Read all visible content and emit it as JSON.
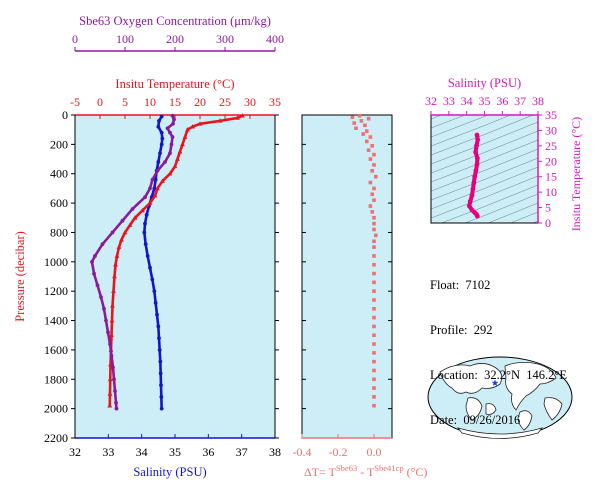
{
  "colors": {
    "plot_bg": "#cdeef7",
    "oxygen": "#8b1a9b",
    "temperature": "#e8141e",
    "salinity": "#1414c8",
    "delta": "#f07070",
    "ts_axis": "#d51ab8",
    "ts_curve": "#e6007e",
    "grid": "#000000"
  },
  "info": {
    "float_label": "Float:",
    "float_value": "7102",
    "profile_label": "Profile:",
    "profile_value": "292",
    "location_label": "Location:",
    "location_value": "32.2°N  146.2°E",
    "date_label": "Date:",
    "date_value": "09/26/2016"
  },
  "map": {
    "marker": "star",
    "marker_color": "#1a3cff",
    "description_free": true
  },
  "chart_data": [
    {
      "type": "line",
      "panel": "main-profiles",
      "ylabel": "Pressure (decibar)",
      "ylim": [
        0,
        2200
      ],
      "y_ticks": [
        0,
        200,
        400,
        600,
        800,
        1000,
        1200,
        1400,
        1600,
        1800,
        2000,
        2200
      ],
      "y_inverted": true,
      "axes": {
        "oxygen": {
          "label": "Sbe63 Oxygen Concentration (μm/kg)",
          "range": [
            0,
            400
          ],
          "ticks": [
            0,
            100,
            200,
            300,
            400
          ]
        },
        "temperature": {
          "label": "Insitu Temperature (°C)",
          "range": [
            -5,
            35
          ],
          "ticks": [
            -5,
            0,
            5,
            10,
            15,
            20,
            25,
            30,
            35
          ]
        },
        "salinity": {
          "label": "Salinity (PSU)",
          "range": [
            32,
            38
          ],
          "ticks": [
            32,
            33,
            34,
            35,
            36,
            37,
            38
          ]
        }
      },
      "series": [
        {
          "axis": "salinity",
          "color_key": "salinity",
          "points": [
            [
              34.6,
              10
            ],
            [
              34.52,
              40
            ],
            [
              34.5,
              80
            ],
            [
              34.6,
              120
            ],
            [
              34.62,
              160
            ],
            [
              34.6,
              200
            ],
            [
              34.55,
              260
            ],
            [
              34.5,
              320
            ],
            [
              34.45,
              380
            ],
            [
              34.42,
              440
            ],
            [
              34.38,
              500
            ],
            [
              34.3,
              560
            ],
            [
              34.22,
              620
            ],
            [
              34.15,
              680
            ],
            [
              34.1,
              740
            ],
            [
              34.08,
              800
            ],
            [
              34.12,
              880
            ],
            [
              34.18,
              960
            ],
            [
              34.25,
              1040
            ],
            [
              34.32,
              1120
            ],
            [
              34.38,
              1200
            ],
            [
              34.42,
              1280
            ],
            [
              34.46,
              1360
            ],
            [
              34.5,
              1440
            ],
            [
              34.52,
              1520
            ],
            [
              34.54,
              1600
            ],
            [
              34.56,
              1680
            ],
            [
              34.57,
              1760
            ],
            [
              34.58,
              1840
            ],
            [
              34.59,
              1920
            ],
            [
              34.6,
              2000
            ]
          ]
        },
        {
          "axis": "temperature",
          "color_key": "temperature",
          "points": [
            [
              28.5,
              5
            ],
            [
              27.5,
              20
            ],
            [
              24,
              40
            ],
            [
              20,
              60
            ],
            [
              18.5,
              80
            ],
            [
              17.5,
              100
            ],
            [
              17,
              150
            ],
            [
              16.5,
              200
            ],
            [
              16,
              250
            ],
            [
              15.5,
              300
            ],
            [
              15,
              350
            ],
            [
              14,
              400
            ],
            [
              12.5,
              450
            ],
            [
              11.5,
              500
            ],
            [
              11,
              550
            ],
            [
              10,
              600
            ],
            [
              8.5,
              650
            ],
            [
              7,
              700
            ],
            [
              6,
              750
            ],
            [
              5,
              800
            ],
            [
              4.3,
              850
            ],
            [
              3.8,
              900
            ],
            [
              3.4,
              960
            ],
            [
              3.1,
              1020
            ],
            [
              2.9,
              1100
            ],
            [
              2.7,
              1200
            ],
            [
              2.5,
              1300
            ],
            [
              2.4,
              1400
            ],
            [
              2.3,
              1500
            ],
            [
              2.2,
              1600
            ],
            [
              2.1,
              1700
            ],
            [
              2.05,
              1800
            ],
            [
              2.0,
              1900
            ],
            [
              1.95,
              1980
            ]
          ]
        },
        {
          "axis": "oxygen",
          "color_key": "oxygen",
          "points": [
            [
              195,
              5
            ],
            [
              198,
              30
            ],
            [
              196,
              60
            ],
            [
              185,
              90
            ],
            [
              190,
              120
            ],
            [
              195,
              150
            ],
            [
              193,
              200
            ],
            [
              190,
              260
            ],
            [
              180,
              320
            ],
            [
              165,
              380
            ],
            [
              155,
              440
            ],
            [
              150,
              500
            ],
            [
              140,
              560
            ],
            [
              115,
              640
            ],
            [
              95,
              720
            ],
            [
              75,
              800
            ],
            [
              55,
              880
            ],
            [
              40,
              960
            ],
            [
              34,
              1000
            ],
            [
              38,
              1080
            ],
            [
              45,
              1160
            ],
            [
              52,
              1240
            ],
            [
              58,
              1320
            ],
            [
              62,
              1400
            ],
            [
              66,
              1480
            ],
            [
              70,
              1560
            ],
            [
              73,
              1640
            ],
            [
              76,
              1720
            ],
            [
              78,
              1800
            ],
            [
              80,
              1880
            ],
            [
              82,
              1960
            ],
            [
              83,
              2000
            ]
          ]
        }
      ]
    },
    {
      "type": "scatter",
      "panel": "delta-temperature",
      "xlabel": "ΔT= T^Sbe63 - T^Sbe41cp (°C)",
      "xlabel_parts": {
        "lead": "ΔT= T",
        "sup1": "Sbe63",
        "mid": " - T",
        "sup2": "Sbe41cp",
        "tail": " (°C)"
      },
      "xlim": [
        -0.4,
        0.1
      ],
      "x_ticks": [
        -0.4,
        -0.2,
        0.0
      ],
      "ylim": [
        0,
        2200
      ],
      "y_inverted": true,
      "points": [
        [
          -0.08,
          5
        ],
        [
          -0.12,
          15
        ],
        [
          -0.03,
          25
        ],
        [
          -0.07,
          40
        ],
        [
          -0.11,
          55
        ],
        [
          -0.05,
          70
        ],
        [
          -0.1,
          90
        ],
        [
          -0.04,
          110
        ],
        [
          -0.06,
          130
        ],
        [
          -0.02,
          150
        ],
        [
          -0.04,
          180
        ],
        [
          -0.01,
          210
        ],
        [
          -0.03,
          240
        ],
        [
          0.0,
          270
        ],
        [
          -0.02,
          300
        ],
        [
          0.0,
          340
        ],
        [
          -0.01,
          380
        ],
        [
          0.01,
          420
        ],
        [
          -0.02,
          460
        ],
        [
          0.0,
          500
        ],
        [
          -0.01,
          540
        ],
        [
          0.0,
          580
        ],
        [
          -0.02,
          620
        ],
        [
          -0.01,
          660
        ],
        [
          0.0,
          700
        ],
        [
          0.0,
          740
        ],
        [
          0.0,
          780
        ],
        [
          0.01,
          820
        ],
        [
          0.0,
          860
        ],
        [
          0.0,
          900
        ],
        [
          0.0,
          960
        ],
        [
          0.0,
          1020
        ],
        [
          0.0,
          1080
        ],
        [
          0.0,
          1140
        ],
        [
          0.0,
          1200
        ],
        [
          0.0,
          1260
        ],
        [
          0.0,
          1320
        ],
        [
          0.0,
          1380
        ],
        [
          0.0,
          1440
        ],
        [
          0.0,
          1500
        ],
        [
          0.0,
          1560
        ],
        [
          0.0,
          1620
        ],
        [
          0.0,
          1680
        ],
        [
          0.0,
          1740
        ],
        [
          0.0,
          1800
        ],
        [
          0.0,
          1860
        ],
        [
          0.0,
          1920
        ],
        [
          0.0,
          1980
        ]
      ]
    },
    {
      "type": "line",
      "panel": "ts-diagram",
      "xlabel": "Salinity (PSU)",
      "ylabel": "Insitu Temperature (°C)",
      "xlim": [
        32,
        38
      ],
      "ylim": [
        0,
        35
      ],
      "x_ticks": [
        32,
        33,
        34,
        35,
        36,
        37,
        38
      ],
      "y_ticks": [
        0,
        5,
        10,
        15,
        20,
        25,
        30,
        35
      ],
      "points": [
        [
          34.58,
          28.5
        ],
        [
          34.62,
          27
        ],
        [
          34.55,
          25
        ],
        [
          34.5,
          23
        ],
        [
          34.6,
          21
        ],
        [
          34.58,
          19
        ],
        [
          34.52,
          17
        ],
        [
          34.45,
          15
        ],
        [
          34.4,
          13
        ],
        [
          34.35,
          11
        ],
        [
          34.3,
          9
        ],
        [
          34.2,
          7
        ],
        [
          34.15,
          5.5
        ],
        [
          34.3,
          4.2
        ],
        [
          34.45,
          3.4
        ],
        [
          34.55,
          2.8
        ],
        [
          34.6,
          2.2
        ]
      ]
    }
  ]
}
